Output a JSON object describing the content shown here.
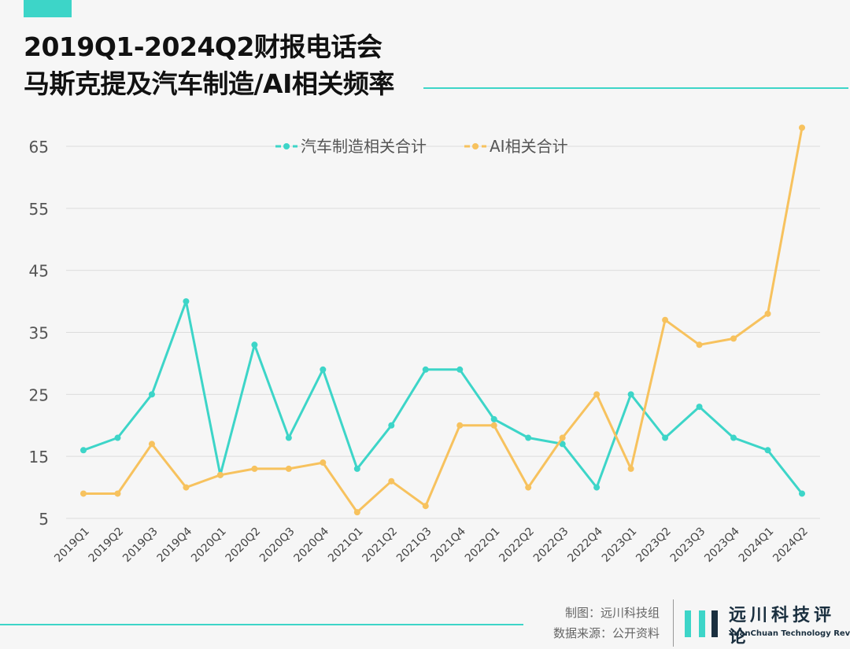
{
  "header": {
    "title_line1": "2019Q1-2024Q2财报电话会",
    "title_line2": "马斯克提及汽车制造/AI相关频率"
  },
  "footer": {
    "made_by": "制图：远川科技组",
    "source": "数据来源：公开资料",
    "logo_cn": "远川科技评论",
    "logo_en": "YuanChuan Technology Review"
  },
  "colors": {
    "accent": "#3dd5c8",
    "series1": "#3dd5c8",
    "series2": "#f7c25e",
    "grid": "#dcdcdc"
  },
  "chart_data": {
    "type": "line",
    "title": "2019Q1-2024Q2财报电话会马斯克提及汽车制造/AI相关频率",
    "xlabel": "",
    "ylabel": "",
    "categories": [
      "2019Q1",
      "2019Q2",
      "2019Q3",
      "2019Q4",
      "2020Q1",
      "2020Q2",
      "2020Q3",
      "2020Q4",
      "2021Q1",
      "2021Q2",
      "2021Q3",
      "2021Q4",
      "2022Q1",
      "2022Q2",
      "2022Q3",
      "2022Q4",
      "2023Q1",
      "2023Q2",
      "2023Q3",
      "2023Q4",
      "2024Q1",
      "2024Q2"
    ],
    "yticks": [
      5,
      15,
      25,
      35,
      45,
      55,
      65
    ],
    "ylim": [
      5,
      68
    ],
    "grid": true,
    "legend_position": "top-center",
    "series": [
      {
        "name": "汽车制造相关合计",
        "values": [
          16,
          18,
          25,
          40,
          12,
          33,
          18,
          29,
          13,
          20,
          29,
          29,
          21,
          18,
          17,
          10,
          25,
          18,
          23,
          18,
          16,
          9
        ]
      },
      {
        "name": "AI相关合计",
        "values": [
          9,
          9,
          17,
          10,
          12,
          13,
          13,
          14,
          6,
          11,
          7,
          20,
          20,
          10,
          18,
          25,
          13,
          37,
          33,
          34,
          38,
          68
        ]
      }
    ]
  }
}
